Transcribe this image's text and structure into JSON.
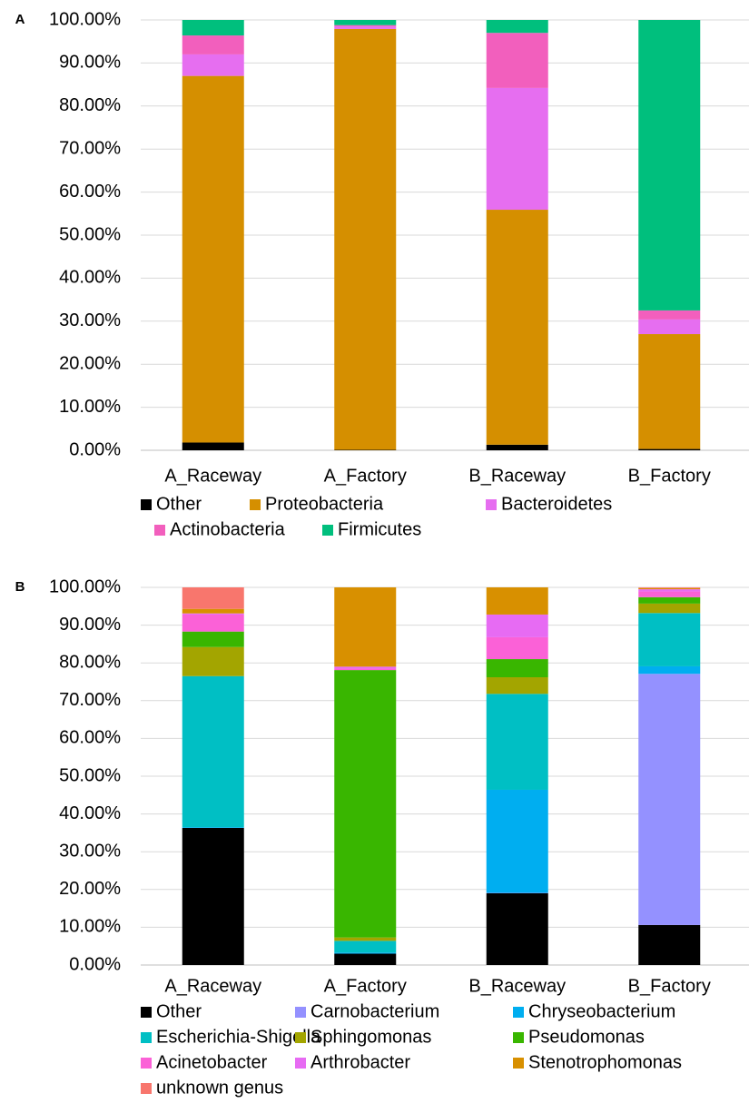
{
  "chart_data": [
    {
      "type": "stacked_bar",
      "panel_label": "A",
      "categories": [
        "A_Raceway",
        "A_Factory",
        "B_Raceway",
        "B_Factory"
      ],
      "series": [
        {
          "name": "Other",
          "color": "#000000",
          "values": [
            1.8,
            0.1,
            1.3,
            0.3
          ]
        },
        {
          "name": "Proteobacteria",
          "color": "#d58f00",
          "values": [
            85.2,
            97.8,
            54.6,
            26.7
          ]
        },
        {
          "name": "Bacteroidetes",
          "color": "#e66ef0",
          "values": [
            5.0,
            0.6,
            28.3,
            3.4
          ]
        },
        {
          "name": "Actinobacteria",
          "color": "#f25fbd",
          "values": [
            4.4,
            0.3,
            12.8,
            2.1
          ]
        },
        {
          "name": "Firmicutes",
          "color": "#00bf7d",
          "values": [
            3.6,
            1.2,
            3.0,
            67.5
          ]
        }
      ],
      "ylim": [
        0,
        100
      ],
      "yticks": [
        {
          "value": 0,
          "label": "0.00%"
        },
        {
          "value": 10,
          "label": "10.00%"
        },
        {
          "value": 20,
          "label": "20.00%"
        },
        {
          "value": 30,
          "label": "30.00%"
        },
        {
          "value": 40,
          "label": "40.00%"
        },
        {
          "value": 50,
          "label": "50.00%"
        },
        {
          "value": 60,
          "label": "60.00%"
        },
        {
          "value": 70,
          "label": "70.00%"
        },
        {
          "value": 80,
          "label": "80.00%"
        },
        {
          "value": 90,
          "label": "90.00%"
        },
        {
          "value": 100,
          "label": "100.00%"
        }
      ],
      "grid": true
    },
    {
      "type": "stacked_bar",
      "panel_label": "B",
      "categories": [
        "A_Raceway",
        "A_Factory",
        "B_Raceway",
        "B_Factory"
      ],
      "series": [
        {
          "name": "Other",
          "color": "#000000",
          "values": [
            36.3,
            3.0,
            19.0,
            10.6
          ]
        },
        {
          "name": "Carnobacterium",
          "color": "#9491ff",
          "values": [
            0,
            0,
            0.1,
            66.5
          ]
        },
        {
          "name": "Chryseobacterium",
          "color": "#00aef0",
          "values": [
            0.2,
            0.3,
            27.3,
            2.0
          ]
        },
        {
          "name": "Escherichia-Shigella",
          "color": "#00bfc4",
          "values": [
            40.0,
            3.1,
            25.4,
            14.1
          ]
        },
        {
          "name": "Sphingomonas",
          "color": "#a3a500",
          "values": [
            7.7,
            0.9,
            4.4,
            2.5
          ]
        },
        {
          "name": "Pseudomonas",
          "color": "#39b600",
          "values": [
            4.1,
            70.8,
            4.8,
            1.7
          ]
        },
        {
          "name": "Acinetobacter",
          "color": "#fb61d7",
          "values": [
            4.5,
            0.4,
            5.8,
            1.5
          ]
        },
        {
          "name": "Arthrobacter",
          "color": "#e76bf3",
          "values": [
            0.3,
            0.5,
            6.0,
            0.6
          ]
        },
        {
          "name": "Stenotrophomonas",
          "color": "#d89000",
          "values": [
            1.2,
            21.0,
            7.2,
            0.3
          ]
        },
        {
          "name": "unknown genus",
          "color": "#f8766d",
          "values": [
            5.7,
            0,
            0,
            0.2
          ]
        }
      ],
      "ylim": [
        0,
        100
      ],
      "yticks": [
        {
          "value": 0,
          "label": "0.00%"
        },
        {
          "value": 10,
          "label": "10.00%"
        },
        {
          "value": 20,
          "label": "20.00%"
        },
        {
          "value": 30,
          "label": "30.00%"
        },
        {
          "value": 40,
          "label": "40.00%"
        },
        {
          "value": 50,
          "label": "50.00%"
        },
        {
          "value": 60,
          "label": "60.00%"
        },
        {
          "value": 70,
          "label": "70.00%"
        },
        {
          "value": 80,
          "label": "80.00%"
        },
        {
          "value": 90,
          "label": "90.00%"
        },
        {
          "value": 100,
          "label": "100.00%"
        }
      ],
      "grid": true
    }
  ]
}
